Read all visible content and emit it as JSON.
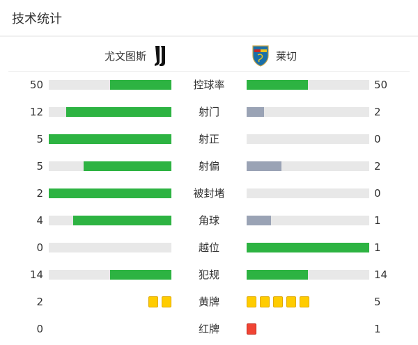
{
  "title": "技术统计",
  "home": {
    "name": "尤文图斯",
    "logo": "juventus-logo"
  },
  "away": {
    "name": "莱切",
    "logo": "lecce-logo"
  },
  "colors": {
    "lead": "#2db342",
    "trail": "#9aa3b5",
    "track": "#e8e8e8",
    "yellow": "#ffcc00",
    "red": "#f04434"
  },
  "stats": [
    {
      "label": "控球率",
      "home": 50,
      "away": 50
    },
    {
      "label": "射门",
      "home": 12,
      "away": 2
    },
    {
      "label": "射正",
      "home": 5,
      "away": 0
    },
    {
      "label": "射偏",
      "home": 5,
      "away": 2
    },
    {
      "label": "被封堵",
      "home": 2,
      "away": 0
    },
    {
      "label": "角球",
      "home": 4,
      "away": 1
    },
    {
      "label": "越位",
      "home": 0,
      "away": 1
    },
    {
      "label": "犯规",
      "home": 14,
      "away": 14
    }
  ],
  "cards": [
    {
      "label": "黄牌",
      "type": "yellow",
      "home": 2,
      "away": 5
    },
    {
      "label": "红牌",
      "type": "red",
      "home": 0,
      "away": 1
    }
  ]
}
